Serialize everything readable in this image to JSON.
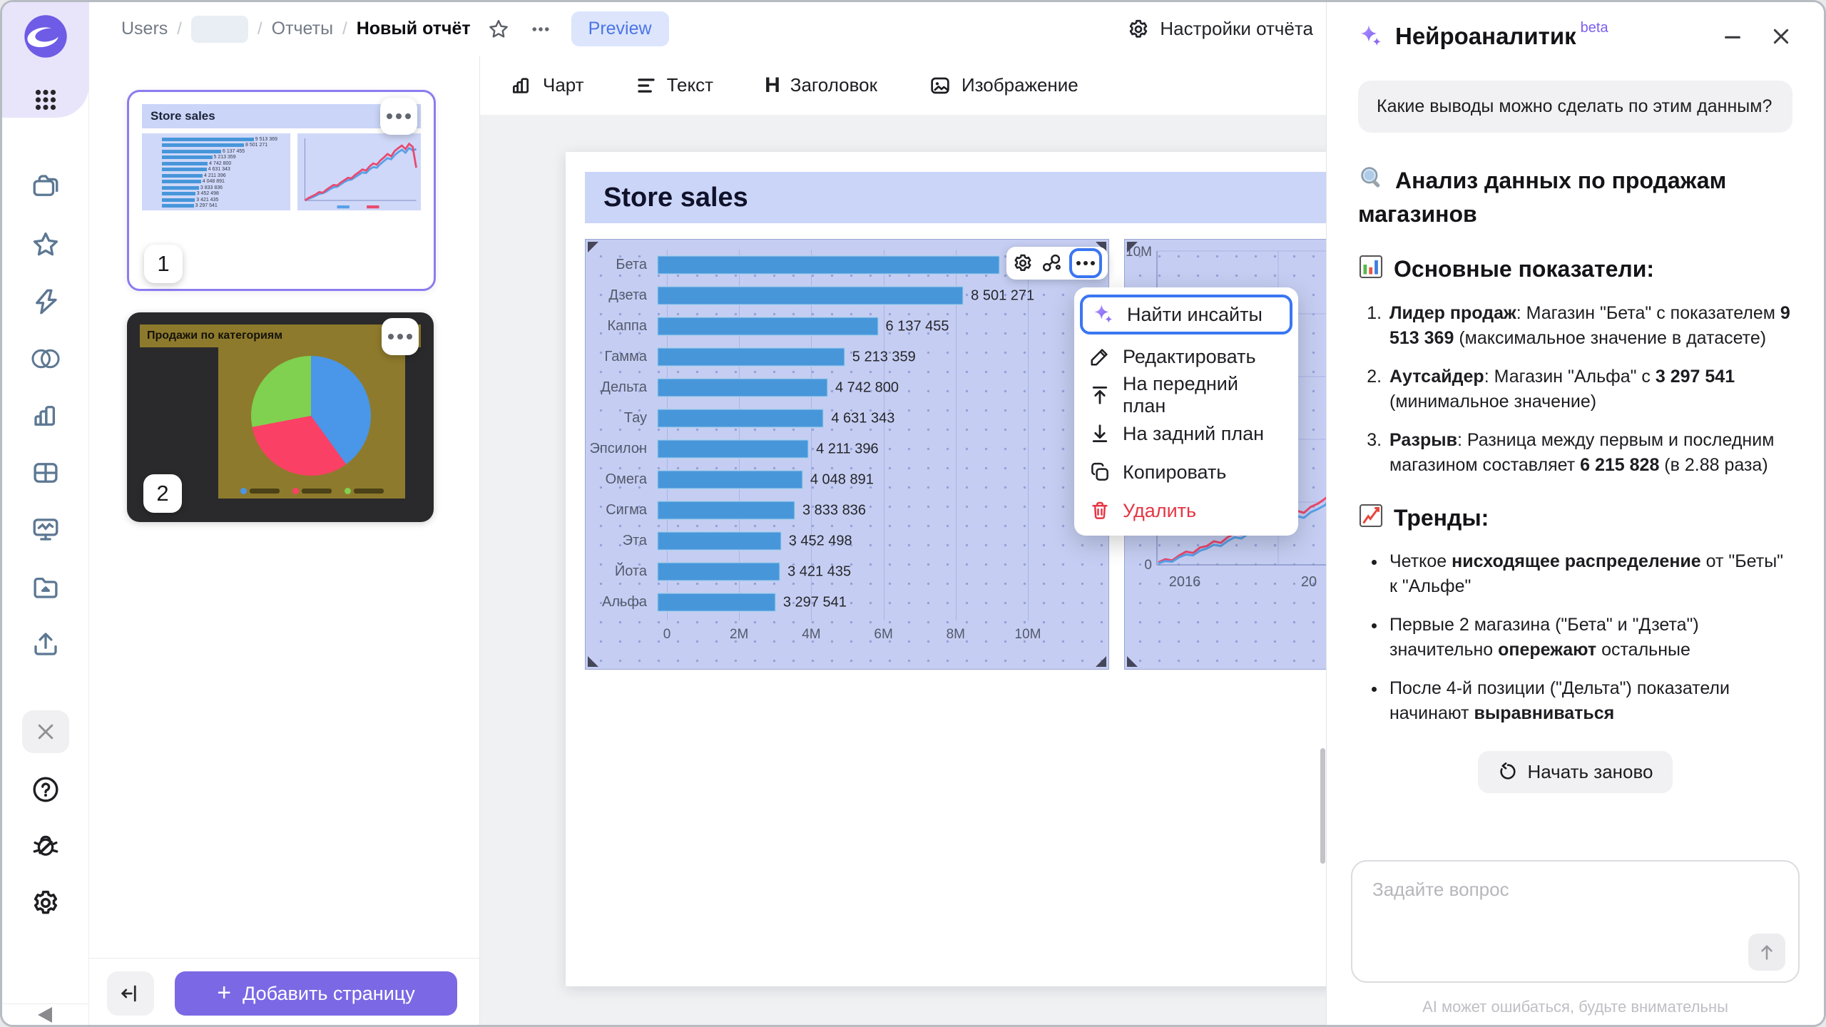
{
  "breadcrumbs": {
    "separator": "/",
    "items": [
      "Users",
      "Отчеты",
      "Новый отчёт"
    ]
  },
  "header": {
    "preview_label": "Preview",
    "report_settings_label": "Настройки отчёта"
  },
  "toolbar": {
    "items": [
      {
        "label": "Чарт"
      },
      {
        "label": "Текст"
      },
      {
        "label": "Заголовок"
      },
      {
        "label": "Изображение"
      }
    ]
  },
  "pages_panel": {
    "page1": {
      "number": "1",
      "title": "Store sales"
    },
    "page2": {
      "number": "2",
      "title": "Продажи по категориям"
    },
    "add_page_label": "Добавить страницу"
  },
  "canvas": {
    "page_title": "Store sales"
  },
  "widget_menu": {
    "items": [
      {
        "label": "Найти инсайты",
        "active": true
      },
      {
        "label": "Редактировать"
      },
      {
        "label": "На передний план"
      },
      {
        "label": "На задний план"
      },
      {
        "label": "Копировать"
      },
      {
        "label": "Удалить",
        "danger": true
      }
    ]
  },
  "ai_panel": {
    "title": "Нейроаналитик",
    "badge": "beta",
    "user_question": "Какие выводы можно сделать по этим данным?",
    "analysis_heading": "Анализ данных по продажам магазинов",
    "metrics_heading": "Основные показатели:",
    "kpi_items": [
      {
        "segments": [
          {
            "t": "Лидер продаж",
            "b": true
          },
          {
            "t": ": Магазин \"Бета\" с показателем ",
            "b": false
          },
          {
            "t": "9 513 369",
            "b": true
          },
          {
            "t": " (максимальное значение в датасете)",
            "b": false
          }
        ]
      },
      {
        "segments": [
          {
            "t": "Аутсайдер",
            "b": true
          },
          {
            "t": ": Магазин \"Альфа\" с ",
            "b": false
          },
          {
            "t": "3 297 541",
            "b": true
          },
          {
            "t": " (минимальное значение)",
            "b": false
          }
        ]
      },
      {
        "segments": [
          {
            "t": "Разрыв",
            "b": true
          },
          {
            "t": ": Разница между первым и последним магазином составляет ",
            "b": false
          },
          {
            "t": "6 215 828",
            "b": true
          },
          {
            "t": " (в 2.88 раза)",
            "b": false
          }
        ]
      }
    ],
    "trends_heading": "Тренды:",
    "trend_items": [
      {
        "segments": [
          {
            "t": "Четкое ",
            "b": false
          },
          {
            "t": "нисходящее распределение",
            "b": true
          },
          {
            "t": " от \"Беты\" к \"Альфе\"",
            "b": false
          }
        ]
      },
      {
        "segments": [
          {
            "t": "Первые 2 магазина (\"Бета\" и \"Дзета\") значительно ",
            "b": false
          },
          {
            "t": "опережают",
            "b": true
          },
          {
            "t": " остальные",
            "b": false
          }
        ]
      },
      {
        "segments": [
          {
            "t": "После 4-й позиции (\"Дельта\") показатели начинают ",
            "b": false
          },
          {
            "t": "выравниваться",
            "b": true
          }
        ]
      }
    ],
    "restart_label": "Начать заново",
    "input_placeholder": "Задайте вопрос",
    "disclaimer": "AI может ошибаться, будьте внимательны"
  },
  "rail": {
    "icons": [
      "datalens-logo",
      "apps-grid",
      "folders",
      "star",
      "lightning",
      "venn-circles",
      "chart",
      "table",
      "monitor-pulse",
      "folder",
      "upload",
      "close",
      "help",
      "bug",
      "settings",
      "collapse"
    ]
  },
  "chart_data": [
    {
      "type": "bar",
      "orientation": "horizontal",
      "title": "Store sales",
      "categories": [
        "Бета",
        "Дзета",
        "Каппа",
        "Гамма",
        "Дельта",
        "Тау",
        "Эпсилон",
        "Омега",
        "Сигма",
        "Эта",
        "Йота",
        "Альфа"
      ],
      "values": [
        9513369,
        8501271,
        6137455,
        5213359,
        4742800,
        4631343,
        4211396,
        4048891,
        3833836,
        3452498,
        3421435,
        3297541
      ],
      "value_labels": [
        "9 513 369",
        "8 501 271",
        "6 137 455",
        "5 213 359",
        "4 742 800",
        "4 631 343",
        "4 211 396",
        "4 048 891",
        "3 833 836",
        "3 452 498",
        "3 421 435",
        "3 297 541"
      ],
      "x_ticks": [
        "0",
        "2M",
        "4M",
        "6M",
        "8M",
        "10M"
      ],
      "xlim": [
        0,
        10000000
      ],
      "bar_color": "#4796da",
      "grid": true
    },
    {
      "type": "line",
      "y_ticks": [
        "10M",
        "0"
      ],
      "ylim": [
        0,
        10000000
      ],
      "x_ticks_visible": [
        "2016",
        "20"
      ],
      "grid": true,
      "series": [
        {
          "name": "red",
          "color": "#e84a6f",
          "values_m": [
            0.08,
            0.18,
            0.14,
            0.3,
            0.42,
            0.38,
            0.55,
            0.6,
            0.75,
            0.7,
            0.88,
            1.0,
            0.95,
            1.12,
            1.25,
            1.2,
            1.38,
            1.45,
            1.4,
            1.6,
            1.72,
            1.66,
            1.85,
            1.95,
            2.1,
            2.3
          ]
        },
        {
          "name": "blue",
          "color": "#58a0e8",
          "values_m": [
            0.05,
            0.12,
            0.1,
            0.24,
            0.33,
            0.3,
            0.45,
            0.52,
            0.64,
            0.6,
            0.76,
            0.88,
            0.84,
            1.0,
            1.1,
            1.06,
            1.22,
            1.3,
            1.26,
            1.44,
            1.55,
            1.5,
            1.68,
            1.78,
            1.9,
            2.1
          ]
        }
      ],
      "thumb_sparkline": {
        "red": [
          0,
          4,
          7,
          10,
          14,
          13,
          18,
          22,
          26,
          25,
          30,
          34,
          38,
          37,
          43,
          47,
          52,
          50,
          57,
          62,
          60,
          67,
          72,
          78,
          74,
          83,
          88,
          92,
          86,
          95,
          90,
          55
        ],
        "blue": [
          0,
          3,
          5,
          8,
          11,
          12,
          15,
          19,
          22,
          23,
          27,
          31,
          34,
          35,
          39,
          43,
          47,
          46,
          52,
          56,
          55,
          61,
          66,
          71,
          69,
          76,
          81,
          85,
          80,
          88,
          84,
          86
        ]
      }
    },
    {
      "type": "pie",
      "title": "Продажи по категориям",
      "slices": [
        {
          "color": "#4a96e8",
          "percent": 40
        },
        {
          "color": "#fb4066",
          "percent": 32
        },
        {
          "color": "#7fd14f",
          "percent": 28
        }
      ],
      "background": "#8e7a2c"
    }
  ],
  "colors": {
    "accent_purple": "#7b68e4",
    "selection_blue": "#3b76f2",
    "widget_bg": "#c5cef2",
    "bar_blue": "#4796da",
    "danger_red": "#e53644",
    "preview_bg": "#dce5fc",
    "preview_text": "#4b74e6"
  }
}
